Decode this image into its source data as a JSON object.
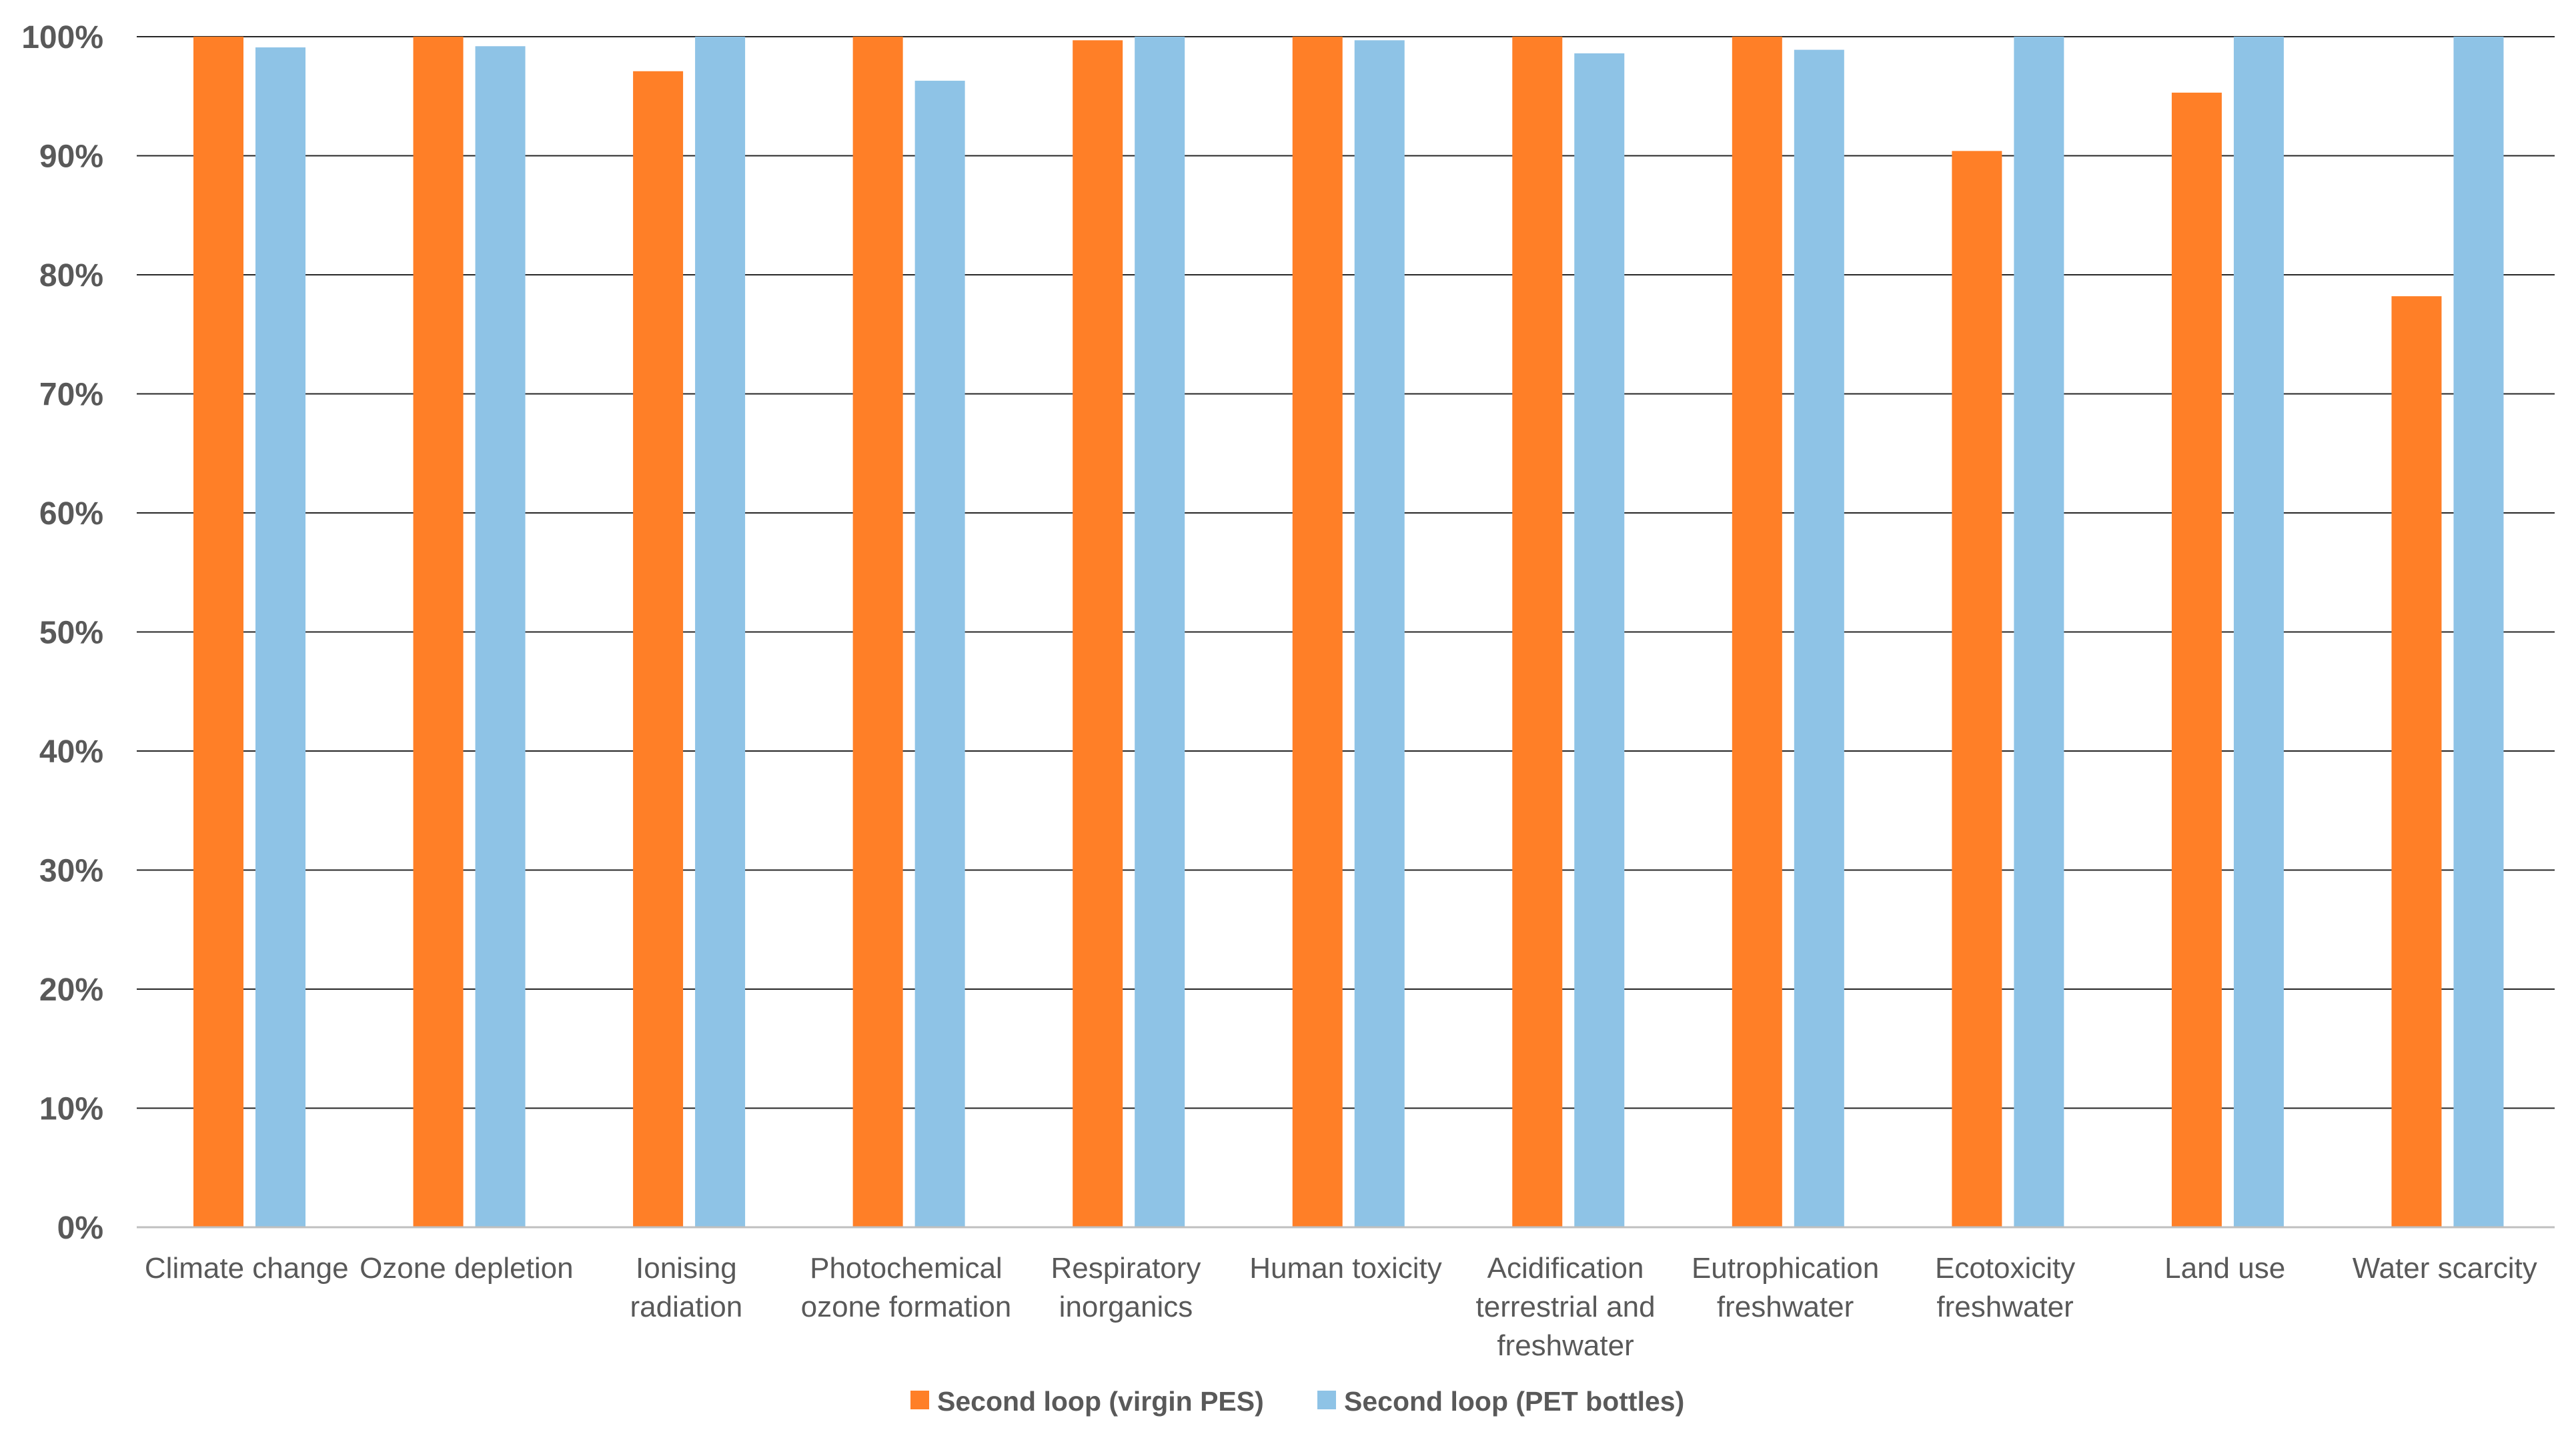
{
  "chart_data": {
    "type": "bar",
    "title": "",
    "xlabel": "",
    "ylabel": "",
    "ylim": [
      0,
      100
    ],
    "ytick_step": 10,
    "ytick_suffix": "%",
    "grid": true,
    "legend_position": "bottom-center",
    "categories": [
      [
        "Climate change"
      ],
      [
        "Ozone depletion"
      ],
      [
        "Ionising",
        "radiation"
      ],
      [
        "Photochemical",
        "ozone formation"
      ],
      [
        "Respiratory",
        "inorganics"
      ],
      [
        "Human toxicity"
      ],
      [
        "Acidification",
        "terrestrial and",
        "freshwater"
      ],
      [
        "Eutrophication",
        "freshwater"
      ],
      [
        "Ecotoxicity",
        "freshwater"
      ],
      [
        "Land use"
      ],
      [
        "Water scarcity"
      ]
    ],
    "series": [
      {
        "name": "Second loop (virgin PES)",
        "color": "#FF7F27",
        "values": [
          100,
          100,
          97.1,
          100,
          99.7,
          100,
          100,
          100,
          90.4,
          95.3,
          78.2
        ]
      },
      {
        "name": "Second loop (PET bottles)",
        "color": "#8EC3E6",
        "values": [
          99.1,
          99.2,
          100,
          96.3,
          100,
          99.7,
          98.6,
          98.9,
          100,
          100,
          100
        ]
      }
    ]
  }
}
